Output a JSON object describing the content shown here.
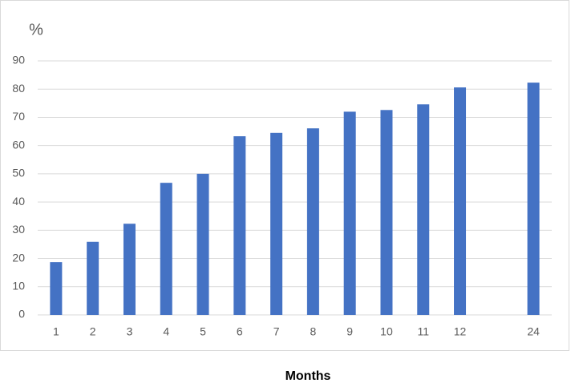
{
  "chart_data": {
    "type": "bar",
    "y_label": "%",
    "x_label": "Months",
    "categories": [
      "1",
      "2",
      "3",
      "4",
      "5",
      "6",
      "7",
      "8",
      "9",
      "10",
      "11",
      "12",
      null,
      "24"
    ],
    "values": [
      18.7,
      25.9,
      32.3,
      46.8,
      50,
      63.3,
      64.5,
      66.1,
      72,
      72.6,
      74.6,
      80.6,
      null,
      82.3
    ],
    "color": "#4472c4",
    "ylim": [
      0,
      90
    ],
    "yticks": [
      0,
      10,
      20,
      30,
      40,
      50,
      60,
      70,
      80,
      90
    ],
    "grid": true
  }
}
